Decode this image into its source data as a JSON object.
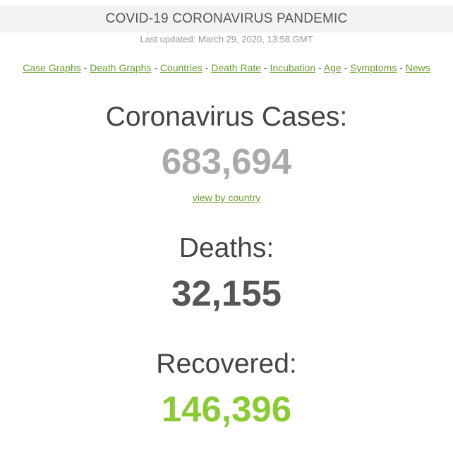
{
  "header": {
    "title": "COVID-19 CORONAVIRUS PANDEMIC",
    "last_updated": "Last updated: March 29, 2020, 13:58 GMT"
  },
  "nav": {
    "separator": " - ",
    "links": [
      "Case Graphs",
      "Death Graphs",
      "Countries",
      "Death Rate",
      "Incubation",
      "Age",
      "Symptoms",
      "News"
    ]
  },
  "cases": {
    "label": "Coronavirus Cases:",
    "value": "683,694",
    "link": "view by country"
  },
  "deaths": {
    "label": "Deaths:",
    "value": "32,155"
  },
  "recovered": {
    "label": "Recovered:",
    "value": "146,396"
  },
  "colors": {
    "link_green": "#6a9e2c",
    "cases_gray": "#aaaaaa",
    "deaths_dark": "#555555",
    "recovered_green": "#8acb34",
    "title_bar_bg": "#f2f2f2"
  }
}
